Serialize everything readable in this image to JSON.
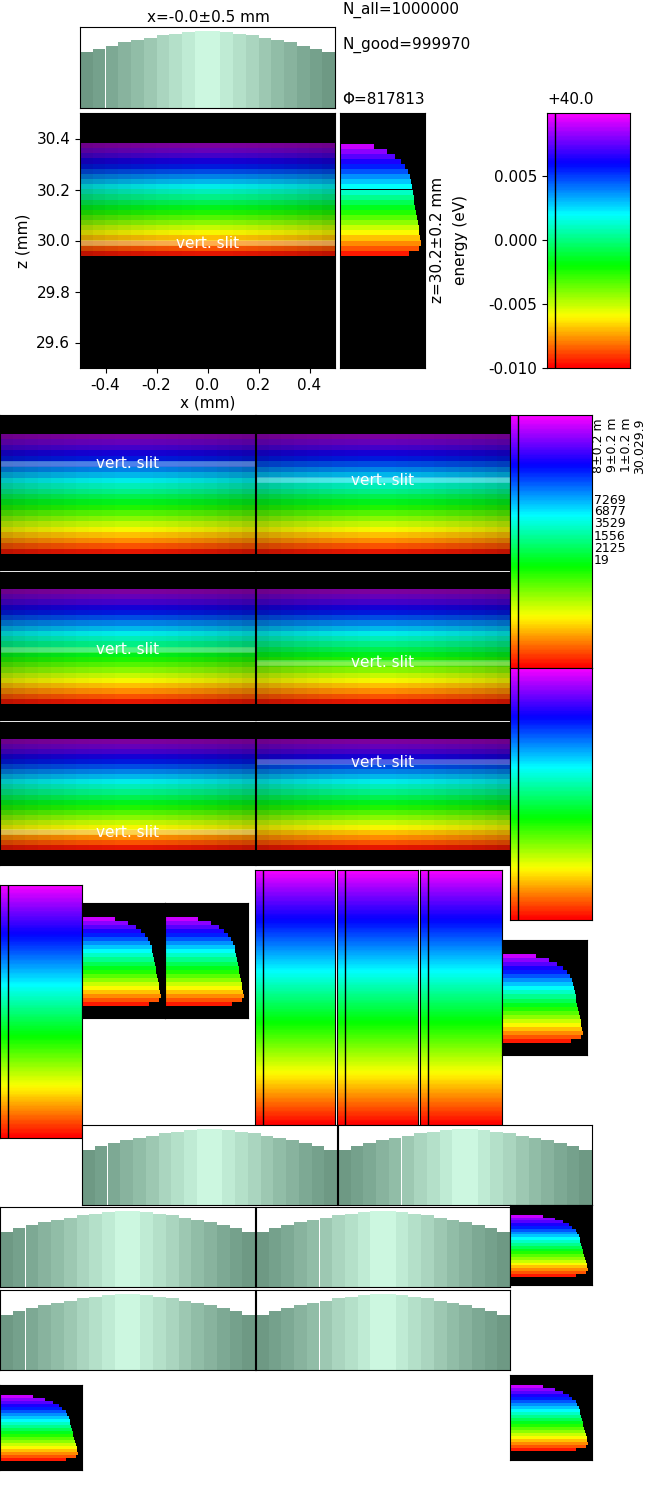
{
  "chart_data": {
    "type": "beam_image",
    "title": "x=-0.0±0.5 mm",
    "stats": [
      "N_all=1000000",
      "N_good=999970",
      "Φ=817813"
    ],
    "xlabel": "x (mm)",
    "ylabel": "z (mm)",
    "z_profile_label": "z=30.2±0.2 mm",
    "color_label": "energy (eV)",
    "color_offset_label": "+40.0",
    "xlim": [
      -0.5,
      0.5
    ],
    "ylim": [
      29.5,
      30.5
    ],
    "xticks": [
      -0.4,
      -0.2,
      0.0,
      0.2,
      0.4
    ],
    "yticks": [
      29.6,
      29.8,
      30.0,
      30.2,
      30.4
    ],
    "x_profile": {
      "bins": [
        -0.5,
        -0.45,
        -0.4,
        -0.35,
        -0.3,
        -0.25,
        -0.2,
        -0.15,
        -0.1,
        -0.05,
        0.0,
        0.05,
        0.1,
        0.15,
        0.2,
        0.25,
        0.3,
        0.35,
        0.4,
        0.45,
        0.5
      ],
      "counts": [
        0.72,
        0.77,
        0.81,
        0.85,
        0.88,
        0.91,
        0.94,
        0.96,
        0.98,
        1.0,
        1.0,
        0.98,
        0.96,
        0.94,
        0.91,
        0.88,
        0.85,
        0.81,
        0.77,
        0.72
      ]
    },
    "z_profile": {
      "bins": [
        29.94,
        29.96,
        29.98,
        30.0,
        30.02,
        30.04,
        30.06,
        30.08,
        30.1,
        30.12,
        30.14,
        30.16,
        30.18,
        30.2,
        30.22,
        30.24,
        30.26,
        30.28,
        30.3,
        30.32,
        30.34,
        30.36,
        30.38
      ],
      "counts": [
        0.85,
        0.97,
        1.0,
        0.99,
        0.98,
        0.97,
        0.96,
        0.95,
        0.94,
        0.93,
        0.92,
        0.91,
        0.9,
        0.89,
        0.88,
        0.86,
        0.84,
        0.8,
        0.75,
        0.68,
        0.58,
        0.42
      ]
    },
    "energy_range": [
      -0.01,
      0.0095
    ],
    "clim": [
      -0.01,
      0.0099
    ],
    "cticks": [
      {
        "value": -0.01,
        "label": "-0.010"
      },
      {
        "value": -0.005,
        "label": "-0.005"
      },
      {
        "value": 0,
        "label": "0.000"
      },
      {
        "value": 0.005,
        "label": "0.005"
      }
    ],
    "slit_label": "vert. slit",
    "slit_z": 29.99,
    "panels": {
      "ylim": [
        29.88,
        30.45
      ],
      "slit_z": [
        30.27,
        30.21,
        30.15,
        30.1,
        30.01,
        30.29
      ]
    },
    "fragment_texts": [
      "8±0.2 m",
      "9±0.2 m",
      "1±0.2 m",
      "30.029.9"
    ],
    "fragment_numbers": [
      7269,
      6877,
      3529,
      1556,
      2125,
      19
    ]
  }
}
